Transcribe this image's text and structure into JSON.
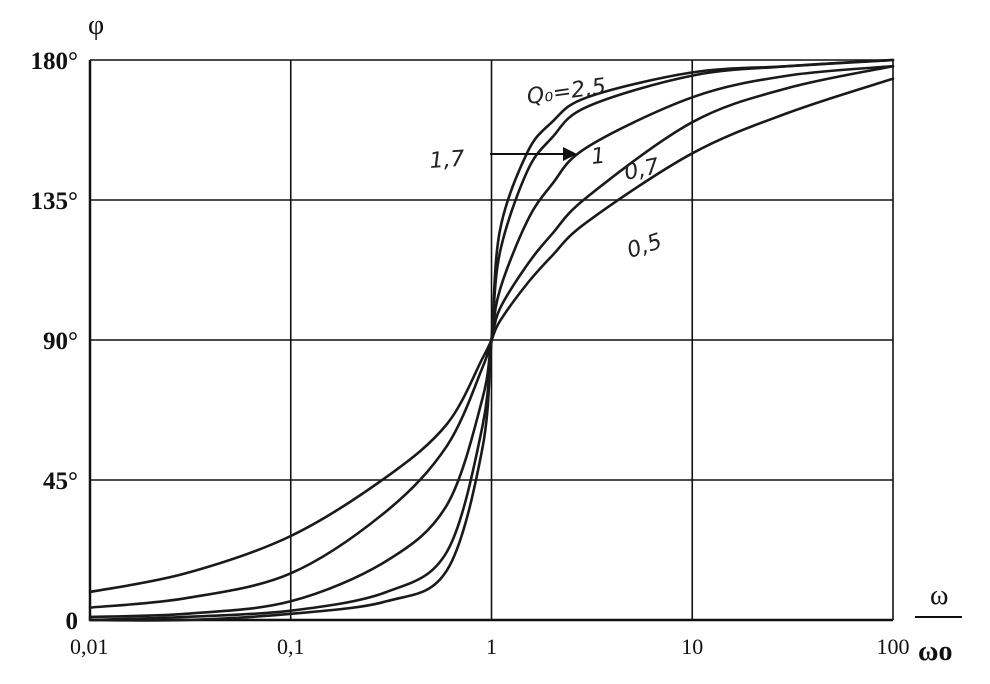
{
  "chart_data": {
    "type": "line",
    "x_scale": "log",
    "xlim": [
      0.01,
      100
    ],
    "ylim": [
      0,
      180
    ],
    "grid": true,
    "ylabel": "φ",
    "xlabel_numerator": "ω",
    "xlabel_denominator": "ωo",
    "x_ticks": [
      "0,01",
      "0,1",
      "1",
      "10",
      "100"
    ],
    "y_ticks": [
      "0",
      "45°",
      "90°",
      "135°",
      "180°"
    ],
    "annotations": [
      "Q₀=2,5",
      "1,7",
      "1",
      "0,7",
      "0,5"
    ],
    "series": [
      {
        "name": "Q₀=2,5",
        "x": [
          0.01,
          0.03,
          0.1,
          0.3,
          0.6,
          0.9,
          1,
          1.1,
          1.5,
          2,
          3,
          10,
          30,
          100
        ],
        "y": [
          0,
          0,
          2,
          6,
          16,
          55,
          90,
          125,
          150,
          160,
          168,
          176,
          178,
          180
        ]
      },
      {
        "name": "1,7",
        "x": [
          0.01,
          0.03,
          0.1,
          0.3,
          0.6,
          0.9,
          1,
          1.1,
          1.5,
          2,
          3,
          10,
          30,
          100
        ],
        "y": [
          0,
          1,
          3,
          9,
          22,
          62,
          90,
          118,
          144,
          155,
          165,
          175,
          178,
          180
        ]
      },
      {
        "name": "1",
        "x": [
          0.01,
          0.03,
          0.1,
          0.3,
          0.6,
          0.9,
          1,
          1.1,
          1.5,
          2,
          3,
          10,
          30,
          100
        ],
        "y": [
          1,
          2,
          6,
          19,
          37,
          71,
          90,
          106,
          128,
          140,
          152,
          168,
          175,
          178
        ]
      },
      {
        "name": "0,7",
        "x": [
          0.01,
          0.03,
          0.1,
          0.3,
          0.6,
          0.9,
          1,
          1.1,
          1.5,
          2,
          3,
          10,
          30,
          100
        ],
        "y": [
          4,
          7,
          15,
          35,
          56,
          81,
          90,
          100,
          114,
          124,
          136,
          160,
          171,
          178
        ]
      },
      {
        "name": "0,5",
        "x": [
          0.01,
          0.03,
          0.1,
          0.3,
          0.6,
          0.9,
          1,
          1.1,
          1.5,
          2,
          3,
          10,
          30,
          100
        ],
        "y": [
          9,
          15,
          27,
          46,
          63,
          84,
          90,
          96,
          108,
          117,
          128,
          150,
          163,
          174
        ]
      }
    ]
  }
}
